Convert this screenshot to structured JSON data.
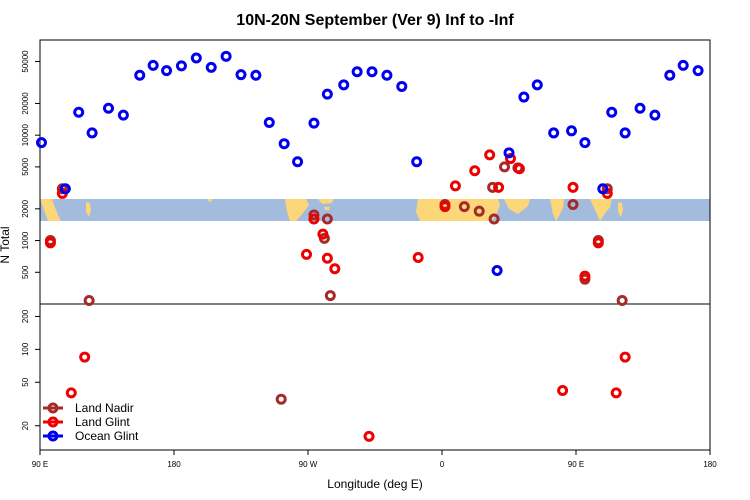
{
  "chart_data": {
    "type": "scatter",
    "title": "10N-20N September (Ver 9)   Inf to -Inf",
    "xlabel": "Longitude (deg E)",
    "ylabel": "N Total",
    "xlim": [
      90,
      540
    ],
    "x_ticks": [
      {
        "value": 90,
        "label": "90 E"
      },
      {
        "value": 180,
        "label": "180"
      },
      {
        "value": 270,
        "label": "90 W"
      },
      {
        "value": 360,
        "label": "0"
      },
      {
        "value": 450,
        "label": "90 E"
      },
      {
        "value": 540,
        "label": "180"
      }
    ],
    "y_scale": "log",
    "upper_panel": {
      "ylim": [
        250,
        80000
      ],
      "y_ticks": [
        500,
        1000,
        2000,
        5000,
        10000,
        20000,
        50000
      ],
      "land_strip": {
        "latitudes": "10N-20N",
        "y_range": [
          1500,
          2500
        ]
      }
    },
    "lower_panel": {
      "ylim": [
        12,
        260
      ],
      "y_ticks": [
        20,
        50,
        100,
        200
      ]
    },
    "legend": {
      "position": "bottom-left",
      "entries": [
        "Land Nadir",
        "Land Glint",
        "Ocean Glint"
      ]
    },
    "series": [
      {
        "name": "Land Nadir",
        "color": "#a52a2a",
        "points": [
          {
            "x": 97,
            "y": 1000
          },
          {
            "x": 105,
            "y": 3100
          },
          {
            "x": 123,
            "y": 270
          },
          {
            "x": 274,
            "y": 1750
          },
          {
            "x": 281,
            "y": 1050
          },
          {
            "x": 285,
            "y": 300
          },
          {
            "x": 283,
            "y": 1600
          },
          {
            "x": 362,
            "y": 2200
          },
          {
            "x": 375,
            "y": 2100
          },
          {
            "x": 385,
            "y": 1900
          },
          {
            "x": 394,
            "y": 3200
          },
          {
            "x": 395,
            "y": 1600
          },
          {
            "x": 402,
            "y": 5000
          },
          {
            "x": 411,
            "y": 4900
          },
          {
            "x": 448,
            "y": 2200
          },
          {
            "x": 465,
            "y": 1000
          },
          {
            "x": 471,
            "y": 3100
          },
          {
            "x": 481,
            "y": 270
          },
          {
            "x": 252,
            "y": 35
          },
          {
            "x": 456,
            "y": 430
          }
        ]
      },
      {
        "name": "Land Glint",
        "color": "#ee0000",
        "points": [
          {
            "x": 97,
            "y": 950
          },
          {
            "x": 105,
            "y": 2800
          },
          {
            "x": 111,
            "y": 40
          },
          {
            "x": 120,
            "y": 85
          },
          {
            "x": 269,
            "y": 740
          },
          {
            "x": 274,
            "y": 1600
          },
          {
            "x": 280,
            "y": 1150
          },
          {
            "x": 283,
            "y": 680
          },
          {
            "x": 288,
            "y": 540
          },
          {
            "x": 311,
            "y": 16
          },
          {
            "x": 344,
            "y": 690
          },
          {
            "x": 362,
            "y": 2100
          },
          {
            "x": 369,
            "y": 3300
          },
          {
            "x": 382,
            "y": 4600
          },
          {
            "x": 392,
            "y": 6500
          },
          {
            "x": 398,
            "y": 3200
          },
          {
            "x": 406,
            "y": 6000
          },
          {
            "x": 412,
            "y": 4800
          },
          {
            "x": 441,
            "y": 42
          },
          {
            "x": 448,
            "y": 3200
          },
          {
            "x": 456,
            "y": 460
          },
          {
            "x": 465,
            "y": 950
          },
          {
            "x": 471,
            "y": 2800
          },
          {
            "x": 477,
            "y": 40
          },
          {
            "x": 483,
            "y": 85
          }
        ]
      },
      {
        "name": "Ocean Glint",
        "color": "#0000ee",
        "points": [
          {
            "x": 91,
            "y": 8500
          },
          {
            "x": 107,
            "y": 3100
          },
          {
            "x": 116,
            "y": 16500
          },
          {
            "x": 125,
            "y": 10500
          },
          {
            "x": 136,
            "y": 18000
          },
          {
            "x": 146,
            "y": 15500
          },
          {
            "x": 157,
            "y": 37000
          },
          {
            "x": 166,
            "y": 46000
          },
          {
            "x": 175,
            "y": 41000
          },
          {
            "x": 185,
            "y": 45500
          },
          {
            "x": 195,
            "y": 54000
          },
          {
            "x": 205,
            "y": 44000
          },
          {
            "x": 215,
            "y": 56000
          },
          {
            "x": 225,
            "y": 37500
          },
          {
            "x": 235,
            "y": 37000
          },
          {
            "x": 244,
            "y": 13200
          },
          {
            "x": 254,
            "y": 8300
          },
          {
            "x": 263,
            "y": 5600
          },
          {
            "x": 274,
            "y": 13000
          },
          {
            "x": 283,
            "y": 24500
          },
          {
            "x": 294,
            "y": 30000
          },
          {
            "x": 303,
            "y": 40000
          },
          {
            "x": 313,
            "y": 40000
          },
          {
            "x": 323,
            "y": 37000
          },
          {
            "x": 333,
            "y": 29000
          },
          {
            "x": 343,
            "y": 5600
          },
          {
            "x": 397,
            "y": 520
          },
          {
            "x": 405,
            "y": 6800
          },
          {
            "x": 415,
            "y": 23000
          },
          {
            "x": 424,
            "y": 30000
          },
          {
            "x": 435,
            "y": 10500
          },
          {
            "x": 447,
            "y": 11000
          },
          {
            "x": 456,
            "y": 8500
          },
          {
            "x": 468,
            "y": 3100
          },
          {
            "x": 474,
            "y": 16500
          },
          {
            "x": 483,
            "y": 10500
          },
          {
            "x": 493,
            "y": 18000
          },
          {
            "x": 503,
            "y": 15500
          },
          {
            "x": 513,
            "y": 37000
          },
          {
            "x": 522,
            "y": 46000
          },
          {
            "x": 532,
            "y": 41000
          }
        ]
      }
    ]
  }
}
